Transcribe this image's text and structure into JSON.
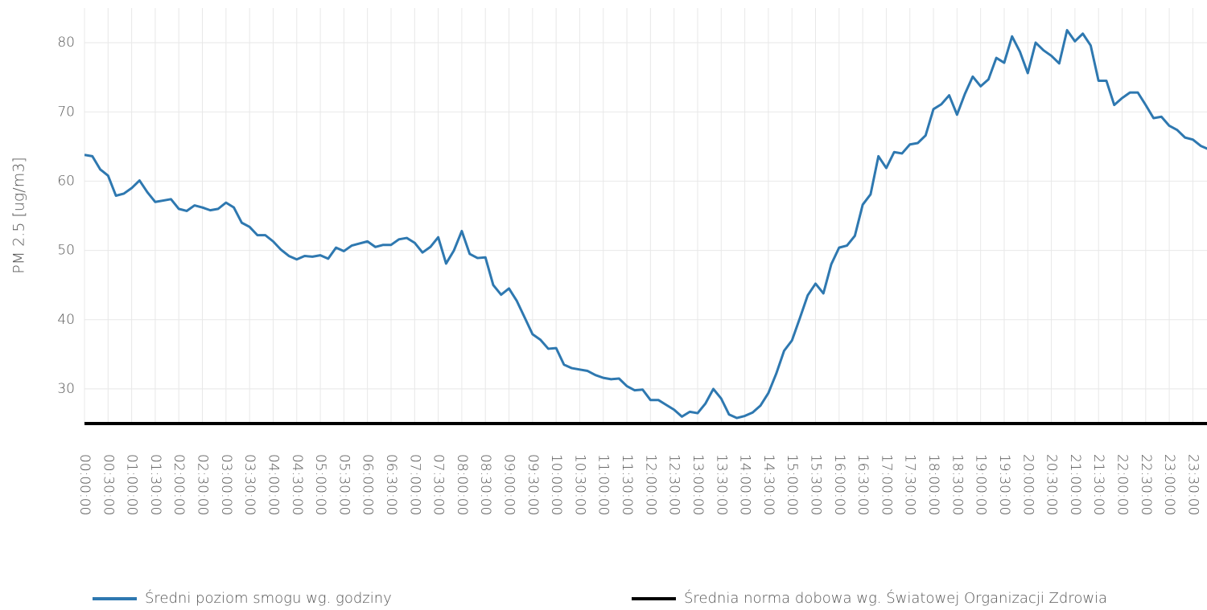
{
  "chart_data": {
    "type": "line",
    "ylabel": "PM 2.5 [ug/m3]",
    "x": [
      "00:00:00",
      "00:10:00",
      "00:20:00",
      "00:30:00",
      "00:40:00",
      "00:50:00",
      "01:00:00",
      "01:10:00",
      "01:20:00",
      "01:30:00",
      "01:40:00",
      "01:50:00",
      "02:00:00",
      "02:10:00",
      "02:20:00",
      "02:30:00",
      "02:40:00",
      "02:50:00",
      "03:00:00",
      "03:10:00",
      "03:20:00",
      "03:30:00",
      "03:40:00",
      "03:50:00",
      "04:00:00",
      "04:10:00",
      "04:20:00",
      "04:30:00",
      "04:40:00",
      "04:50:00",
      "05:00:00",
      "05:10:00",
      "05:20:00",
      "05:30:00",
      "05:40:00",
      "05:50:00",
      "06:00:00",
      "06:10:00",
      "06:20:00",
      "06:30:00",
      "06:40:00",
      "06:50:00",
      "07:00:00",
      "07:10:00",
      "07:20:00",
      "07:30:00",
      "07:40:00",
      "07:50:00",
      "08:00:00",
      "08:10:00",
      "08:20:00",
      "08:30:00",
      "08:40:00",
      "08:50:00",
      "09:00:00",
      "09:10:00",
      "09:20:00",
      "09:30:00",
      "09:40:00",
      "09:50:00",
      "10:00:00",
      "10:10:00",
      "10:20:00",
      "10:30:00",
      "10:40:00",
      "10:50:00",
      "11:00:00",
      "11:10:00",
      "11:20:00",
      "11:30:00",
      "11:40:00",
      "11:50:00",
      "12:00:00",
      "12:10:00",
      "12:20:00",
      "12:30:00",
      "12:40:00",
      "12:50:00",
      "13:00:00",
      "13:10:00",
      "13:20:00",
      "13:30:00",
      "13:40:00",
      "13:50:00",
      "14:00:00",
      "14:10:00",
      "14:20:00",
      "14:30:00",
      "14:40:00",
      "14:50:00",
      "15:00:00",
      "15:10:00",
      "15:20:00",
      "15:30:00",
      "15:40:00",
      "15:50:00",
      "16:00:00",
      "16:10:00",
      "16:20:00",
      "16:30:00",
      "16:40:00",
      "16:50:00",
      "17:00:00",
      "17:10:00",
      "17:20:00",
      "17:30:00",
      "17:40:00",
      "17:50:00",
      "18:00:00",
      "18:10:00",
      "18:20:00",
      "18:30:00",
      "18:40:00",
      "18:50:00",
      "19:00:00",
      "19:10:00",
      "19:20:00",
      "19:30:00",
      "19:40:00",
      "19:50:00",
      "20:00:00",
      "20:10:00",
      "20:20:00",
      "20:30:00",
      "20:40:00",
      "20:50:00",
      "21:00:00",
      "21:10:00",
      "21:20:00",
      "21:30:00",
      "21:40:00",
      "21:50:00",
      "22:00:00",
      "22:10:00",
      "22:20:00",
      "22:30:00",
      "22:40:00",
      "22:50:00",
      "23:00:00",
      "23:10:00",
      "23:20:00",
      "23:30:00",
      "23:40:00",
      "23:50:00"
    ],
    "series": [
      {
        "name": "Średni poziom smogu wg. godziny",
        "color": "#2e78b0",
        "values": [
          63.8,
          63.6,
          61.7,
          60.8,
          57.9,
          58.2,
          59.0,
          60.1,
          58.4,
          57.0,
          57.2,
          57.4,
          56.0,
          55.7,
          56.5,
          56.2,
          55.8,
          56.0,
          56.9,
          56.2,
          54.0,
          53.4,
          52.2,
          52.2,
          51.3,
          50.1,
          49.2,
          48.7,
          49.2,
          49.1,
          49.3,
          48.8,
          50.4,
          49.9,
          50.7,
          51.0,
          51.3,
          50.5,
          50.8,
          50.8,
          51.6,
          51.8,
          51.1,
          49.7,
          50.5,
          51.9,
          48.1,
          50.0,
          52.8,
          49.5,
          48.9,
          49.0,
          45.0,
          43.6,
          44.5,
          42.7,
          40.3,
          37.9,
          37.1,
          35.8,
          35.9,
          33.5,
          33.0,
          32.8,
          32.6,
          32.0,
          31.6,
          31.4,
          31.5,
          30.4,
          29.8,
          29.9,
          28.4,
          28.4,
          27.7,
          27.0,
          26.0,
          26.7,
          26.5,
          27.9,
          30.0,
          28.6,
          26.3,
          25.8,
          26.1,
          26.6,
          27.6,
          29.4,
          32.2,
          35.5,
          37.0,
          40.2,
          43.5,
          45.2,
          43.8,
          48.0,
          50.4,
          50.7,
          52.1,
          56.6,
          58.1,
          63.6,
          61.9,
          64.2,
          64.0,
          65.3,
          65.5,
          66.6,
          70.4,
          71.1,
          72.4,
          69.6,
          72.6,
          75.1,
          73.7,
          74.7,
          77.8,
          77.1,
          80.9,
          78.7,
          75.6,
          80.0,
          78.9,
          78.1,
          77.0,
          81.8,
          80.2,
          81.3,
          79.6,
          74.5,
          74.5,
          71.0,
          72.0,
          72.8,
          72.8,
          71.0,
          69.1,
          69.3,
          68.0,
          67.4,
          66.3,
          66.0,
          65.1,
          64.6
        ]
      },
      {
        "name": "Średnia norma dobowa wg. Światowej Organizacji Zdrowia",
        "color": "#000000",
        "x": [
          "00:00:00",
          "23:50:00"
        ],
        "values": [
          25,
          25
        ]
      }
    ],
    "xlim": [
      "00:00:00",
      "23:48:00"
    ],
    "xticks": [
      "00:00:00",
      "00:30:00",
      "01:00:00",
      "01:30:00",
      "02:00:00",
      "02:30:00",
      "03:00:00",
      "03:30:00",
      "04:00:00",
      "04:30:00",
      "05:00:00",
      "05:30:00",
      "06:00:00",
      "06:30:00",
      "07:00:00",
      "07:30:00",
      "08:00:00",
      "08:30:00",
      "09:00:00",
      "09:30:00",
      "10:00:00",
      "10:30:00",
      "11:00:00",
      "11:30:00",
      "12:00:00",
      "12:30:00",
      "13:00:00",
      "13:30:00",
      "14:00:00",
      "14:30:00",
      "15:00:00",
      "15:30:00",
      "16:00:00",
      "16:30:00",
      "17:00:00",
      "17:30:00",
      "18:00:00",
      "18:30:00",
      "19:00:00",
      "19:30:00",
      "20:00:00",
      "20:30:00",
      "21:00:00",
      "21:30:00",
      "22:00:00",
      "22:30:00",
      "23:00:00",
      "23:30:00"
    ],
    "ylim": [
      25,
      85
    ],
    "yticks": [
      30,
      40,
      50,
      60,
      70,
      80
    ],
    "grid": true,
    "legend": "bottom"
  }
}
